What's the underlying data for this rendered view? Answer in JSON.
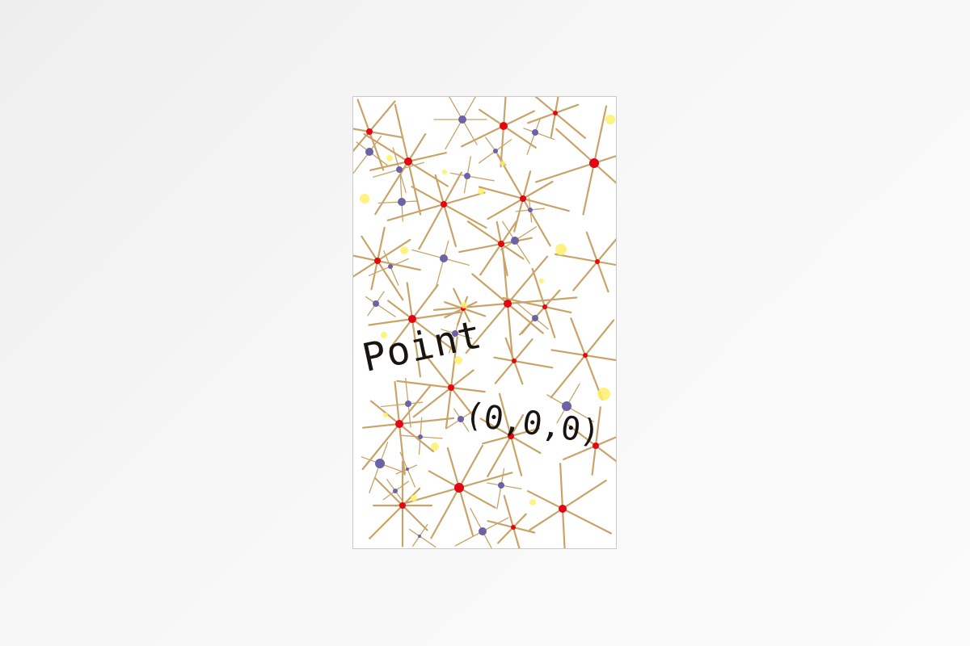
{
  "poster": {
    "title": "Point",
    "subtitle": "(0,0,0)"
  },
  "colors": {
    "stick": "#c8a468",
    "node_red": "#e30613",
    "node_purple": "#6b63a6",
    "node_yellow": "#fff06a",
    "text": "#1a1410"
  }
}
